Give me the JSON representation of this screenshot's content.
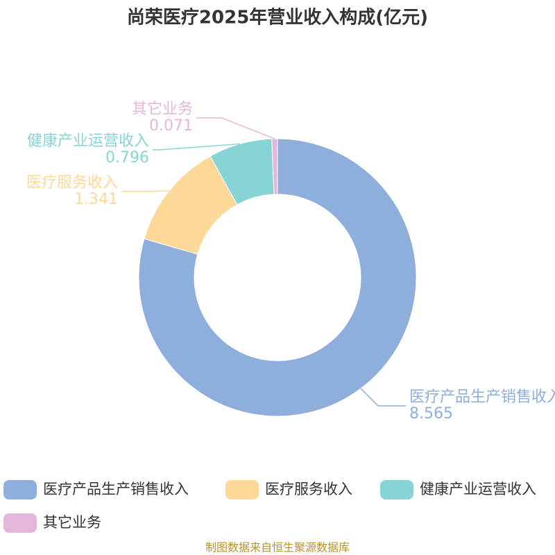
{
  "chart_data": {
    "type": "pie",
    "title": "尚荣医疗2025年营业收入构成(亿元)",
    "categories": [
      "医疗产品生产销售收入",
      "医疗服务收入",
      "健康产业运营收入",
      "其它业务"
    ],
    "values": [
      8.565,
      1.341,
      0.796,
      0.071
    ],
    "colors": [
      "#8eaedb",
      "#fdd898",
      "#86d4d6",
      "#e6b6d8"
    ],
    "source": "制图数据来自恒生聚源数据库"
  }
}
